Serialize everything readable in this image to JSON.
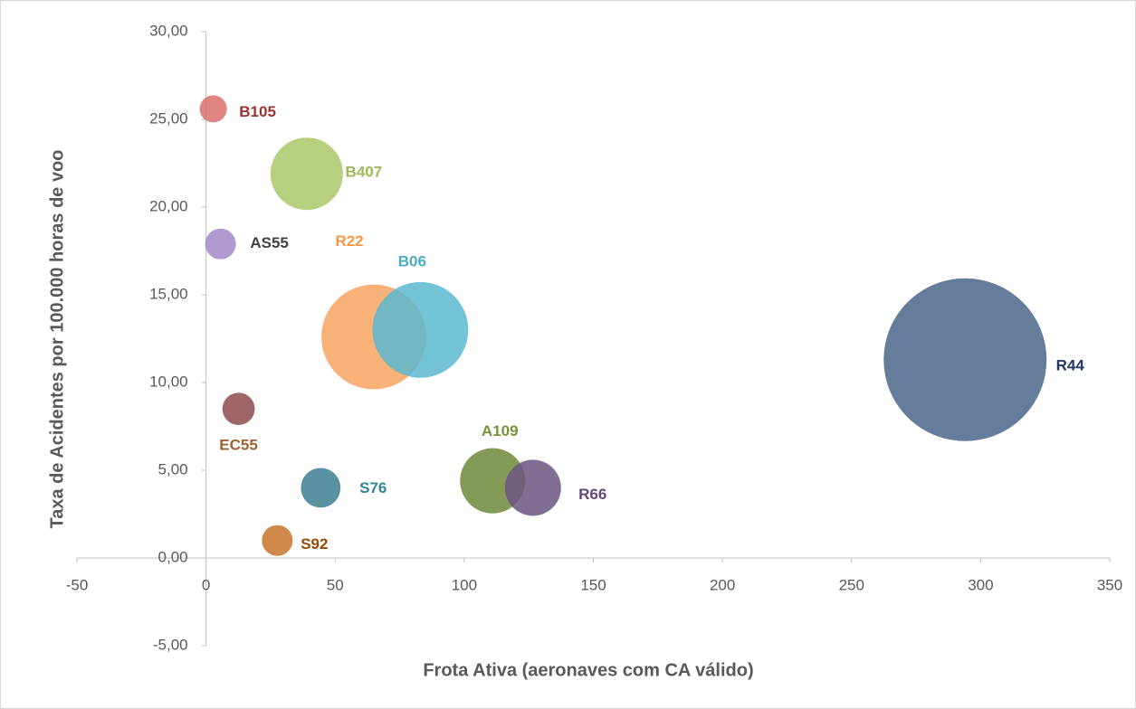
{
  "chart_data": {
    "type": "bubble",
    "x_label": "Frota Ativa (aeronaves com CA válido)",
    "y_label": "Taxa de Acidentes por 100.000 horas de voo",
    "xlim": [
      -50,
      350
    ],
    "xticks": [
      -50,
      0,
      50,
      100,
      150,
      200,
      250,
      300,
      350
    ],
    "ylim": [
      -5,
      30
    ],
    "yticks": [
      {
        "value": -5,
        "label": "-5,00"
      },
      {
        "value": 0,
        "label": "0,00"
      },
      {
        "value": 5,
        "label": "5,00"
      },
      {
        "value": 10,
        "label": "10,00"
      },
      {
        "value": 15,
        "label": "15,00"
      },
      {
        "value": 20,
        "label": "20,00"
      },
      {
        "value": 25,
        "label": "25,00"
      },
      {
        "value": 30,
        "label": "30,00"
      }
    ],
    "points": [
      {
        "name": "B105",
        "x": 2.8,
        "y": 25.6,
        "size": 2.25,
        "color": "#d9706f",
        "label_color": "#9b3230"
      },
      {
        "name": "B407",
        "x": 39,
        "y": 21.9,
        "size": 16,
        "color": "#a9c86a",
        "label_color": "#9bbb59"
      },
      {
        "name": "AS55",
        "x": 5.6,
        "y": 17.9,
        "size": 2.9,
        "color": "#a28ac6",
        "label_color": "#404040"
      },
      {
        "name": "R22",
        "x": 65,
        "y": 12.6,
        "size": 33.6,
        "color": "#f7a35e",
        "label_color": "#f79646"
      },
      {
        "name": "B06",
        "x": 83,
        "y": 13.0,
        "size": 28,
        "color": "#5bb8d0",
        "label_color": "#4bacc6"
      },
      {
        "name": "R44",
        "x": 294,
        "y": 11.3,
        "size": 81,
        "color": "#4a6689",
        "label_color": "#1f3864"
      },
      {
        "name": "EC55",
        "x": 12.6,
        "y": 8.5,
        "size": 3.2,
        "color": "#8e4a4c",
        "label_color": "#9c6130"
      },
      {
        "name": "S76",
        "x": 44.4,
        "y": 4.0,
        "size": 4.8,
        "color": "#3e7f93",
        "label_color": "#31859c"
      },
      {
        "name": "A109",
        "x": 111,
        "y": 4.4,
        "size": 13,
        "color": "#6f8a3b",
        "label_color": "#76923c"
      },
      {
        "name": "R66",
        "x": 126.6,
        "y": 4.0,
        "size": 9.6,
        "color": "#6a5580",
        "label_color": "#604a7b"
      },
      {
        "name": "S92",
        "x": 27.6,
        "y": 1.0,
        "size": 2.9,
        "color": "#c9732c",
        "label_color": "#984807"
      }
    ]
  }
}
